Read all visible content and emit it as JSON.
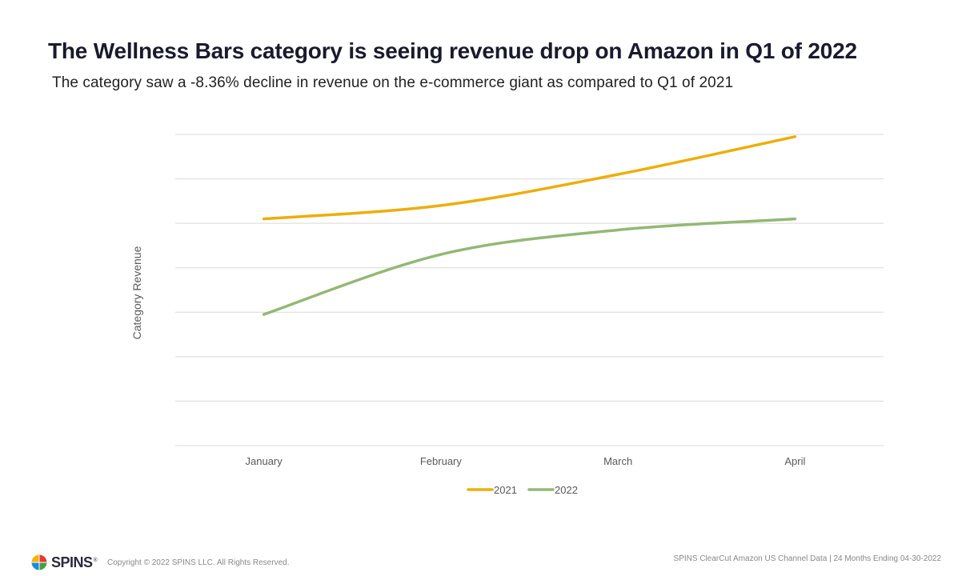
{
  "title": "The Wellness Bars category is seeing revenue drop on Amazon in Q1 of 2022",
  "subtitle": "The category saw a -8.36% decline in revenue on the e-commerce giant as compared to Q1 of 2021",
  "chart_data": {
    "type": "line",
    "categories": [
      "January",
      "February",
      "March",
      "April"
    ],
    "series": [
      {
        "name": "2021",
        "color": "#EDAE0A",
        "values": [
          4.1,
          4.4,
          5.1,
          5.95
        ]
      },
      {
        "name": "2022",
        "color": "#93B875",
        "values": [
          1.95,
          3.3,
          3.85,
          4.1
        ]
      }
    ],
    "ylabel": "Category Revenue",
    "xlabel": "",
    "ylim": [
      -1,
      6
    ],
    "y_tick_labels_shown": false,
    "grid": "horizontal",
    "legend_position": "bottom"
  },
  "footer": {
    "brand": "SPINS",
    "brand_mark": "®",
    "copyright": "Copyright © 2022 SPINS LLC. All Rights Reserved.",
    "source": "SPINS ClearCut Amazon US Channel Data | 24 Months Ending 04-30-2022"
  }
}
